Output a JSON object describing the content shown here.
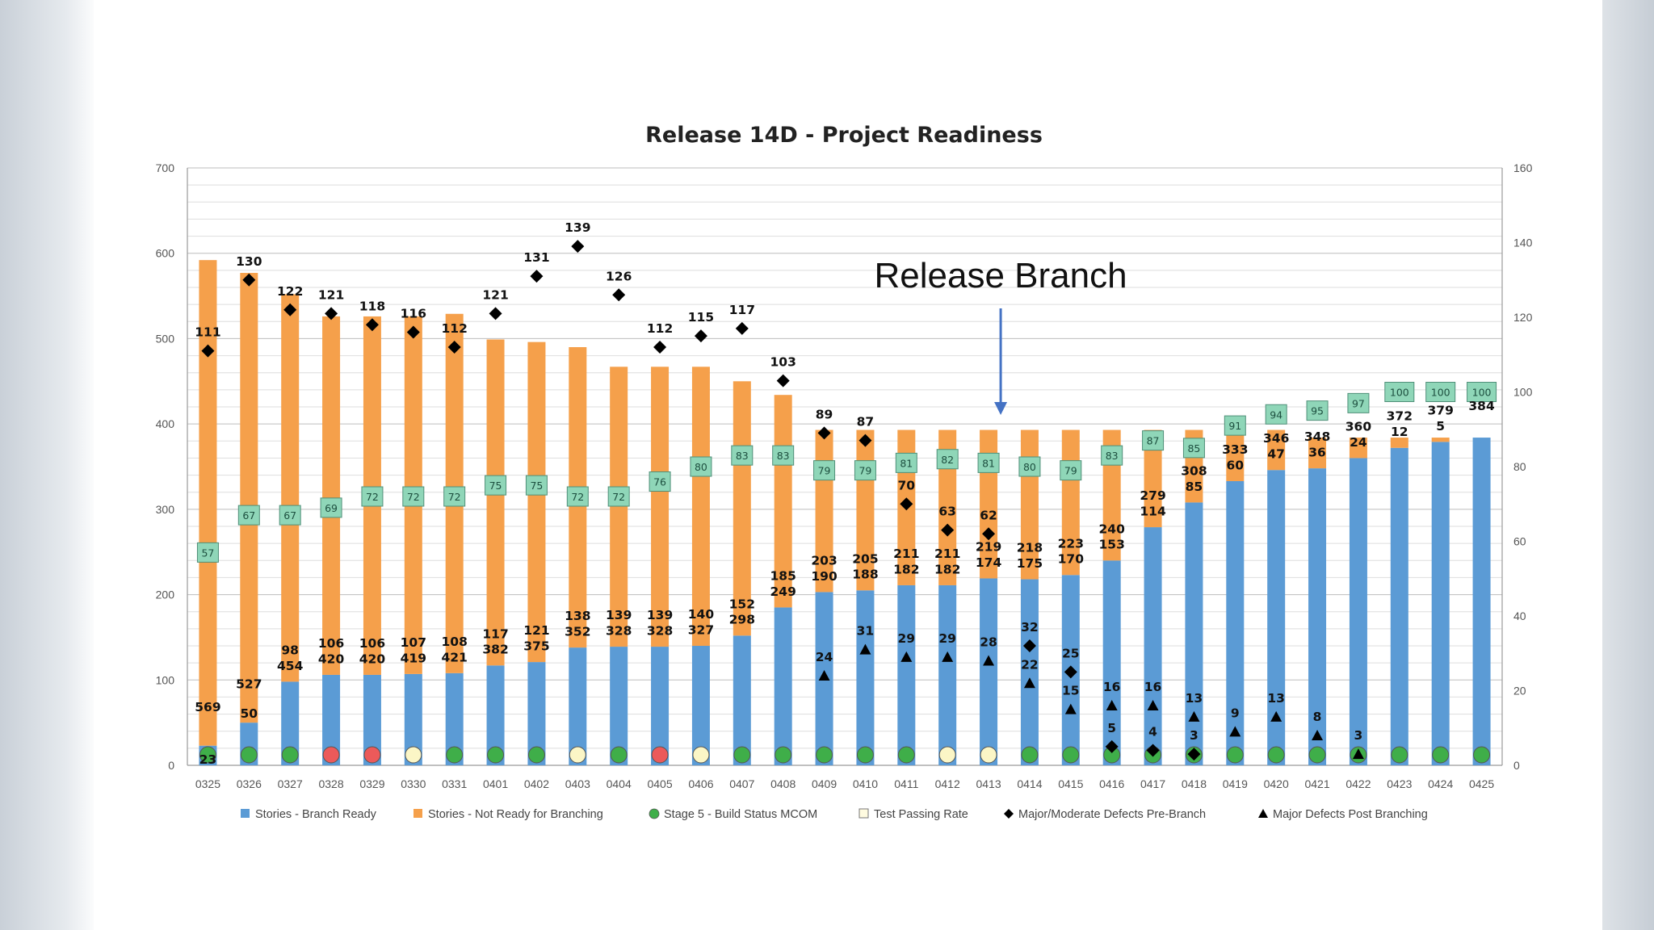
{
  "chart_data": {
    "type": "bar",
    "title": "Release 14D - Project Readiness",
    "categories": [
      "0325",
      "0326",
      "0327",
      "0328",
      "0329",
      "0330",
      "0331",
      "0401",
      "0402",
      "0403",
      "0404",
      "0405",
      "0406",
      "0407",
      "0408",
      "0409",
      "0410",
      "0411",
      "0412",
      "0413",
      "0414",
      "0415",
      "0416",
      "0417",
      "0418",
      "0419",
      "0420",
      "0421",
      "0422",
      "0423",
      "0424",
      "0425"
    ],
    "ylim": [
      0,
      700
    ],
    "y2lim": [
      0,
      160
    ],
    "yticks": [
      0,
      100,
      200,
      300,
      400,
      500,
      600,
      700
    ],
    "y2ticks": [
      0,
      20,
      40,
      60,
      80,
      100,
      120,
      140,
      160
    ],
    "stacked": true,
    "grid": true,
    "legend_position": "bottom",
    "series": [
      {
        "name": "Stories - Branch Ready",
        "type": "bar",
        "axis": "left",
        "color": "#5b9bd5",
        "values": [
          23,
          50,
          98,
          106,
          106,
          107,
          108,
          117,
          121,
          138,
          139,
          139,
          140,
          152,
          185,
          203,
          205,
          211,
          211,
          219,
          218,
          223,
          240,
          279,
          308,
          333,
          346,
          348,
          360,
          372,
          379,
          384
        ]
      },
      {
        "name": "Stories - Not Ready for Branching",
        "type": "bar",
        "axis": "left",
        "color": "#f5a04b",
        "values": [
          569,
          527,
          454,
          420,
          420,
          419,
          421,
          382,
          375,
          352,
          328,
          328,
          327,
          298,
          249,
          190,
          188,
          182,
          182,
          174,
          175,
          170,
          153,
          114,
          85,
          60,
          47,
          36,
          24,
          12,
          5,
          null
        ]
      },
      {
        "name": "Stage 5 - Build Status MCOM",
        "type": "marker",
        "shape": "circle",
        "axis": "left",
        "values": [
          "green",
          "green",
          "green",
          "red",
          "red",
          "yellow",
          "green",
          "green",
          "green",
          "yellow",
          "green",
          "red",
          "yellow",
          "green",
          "green",
          "green",
          "green",
          "green",
          "yellow",
          "yellow",
          "green",
          "green",
          "green",
          "green",
          "green",
          "green",
          "green",
          "green",
          "green",
          "green",
          "green",
          "green"
        ]
      },
      {
        "name": "Test Passing Rate",
        "type": "marker",
        "shape": "square",
        "axis": "right",
        "color": "#8fd6b8",
        "values": [
          57,
          67,
          67,
          69,
          72,
          72,
          72,
          75,
          75,
          72,
          72,
          76,
          80,
          83,
          83,
          79,
          79,
          81,
          82,
          81,
          80,
          79,
          83,
          87,
          85,
          91,
          94,
          95,
          97,
          100,
          100,
          100
        ]
      },
      {
        "name": "Major/Moderate Defects Pre-Branch",
        "type": "marker",
        "shape": "diamond",
        "axis": "right",
        "color": "#000000",
        "values": [
          111,
          130,
          122,
          121,
          118,
          116,
          112,
          121,
          131,
          139,
          126,
          112,
          115,
          117,
          103,
          89,
          87,
          70,
          63,
          62,
          32,
          25,
          5,
          4,
          3,
          null,
          null,
          null,
          null,
          null,
          null,
          null
        ]
      },
      {
        "name": "Major Defects Post Branching",
        "type": "marker",
        "shape": "triangle",
        "axis": "right",
        "color": "#000000",
        "values": [
          null,
          null,
          null,
          null,
          null,
          null,
          null,
          null,
          null,
          null,
          null,
          null,
          null,
          null,
          null,
          24,
          31,
          29,
          29,
          28,
          22,
          15,
          16,
          16,
          13,
          9,
          13,
          8,
          3,
          null,
          null,
          null
        ]
      }
    ],
    "annotations": [
      {
        "text": "Release Branch",
        "category": "0413",
        "arrow": "down"
      }
    ]
  },
  "colors": {
    "green": "#3fae49",
    "red": "#ec5a5a",
    "yellow": "#fbf6c6"
  }
}
